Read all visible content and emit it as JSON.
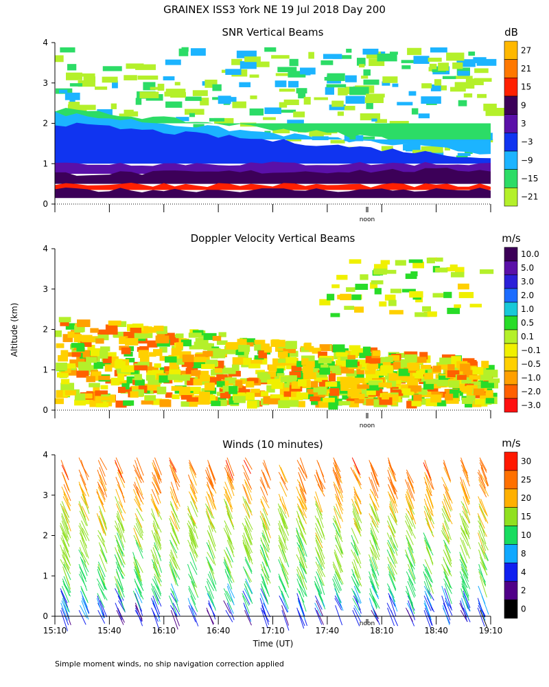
{
  "figure_title": "GRAINEX ISS3 York NE  19 Jul 2018 Day 200",
  "y_axis_label": "Altitude (km)",
  "x_axis_label": "Time (UT)",
  "noon_label": "noon",
  "footnote": "Simple moment winds, no ship navigation correction applied",
  "chart_data": [
    {
      "type": "heatmap",
      "title": "SNR Vertical Beams",
      "xlabel": "",
      "ylabel": "Altitude (km)",
      "x_range": [
        "15:10",
        "19:10"
      ],
      "ylim": [
        0,
        4
      ],
      "y_ticks": [
        0,
        1,
        2,
        3,
        4
      ],
      "colorbar": {
        "unit": "dB",
        "levels": [
          27,
          21,
          15,
          9,
          3,
          -3,
          -9,
          -15,
          -21
        ],
        "labels": [
          "27",
          "21",
          "15",
          "9",
          "3",
          "−3",
          "−9",
          "−15",
          "−21"
        ],
        "colors": [
          "#ffb800",
          "#ff7800",
          "#ff2000",
          "#3c0058",
          "#5a10a8",
          "#1034f0",
          "#1cb4ff",
          "#2cdc66",
          "#b4f02a"
        ]
      },
      "layers": [
        {
          "base": 0.15,
          "top_start": 0.35,
          "top_end": 0.35,
          "level": "9"
        },
        {
          "base": 0.35,
          "top_start": 0.5,
          "top_end": 0.45,
          "level": "15"
        },
        {
          "base": 0.5,
          "top_start": 0.75,
          "top_end": 0.85,
          "level": "9"
        },
        {
          "base": 0.75,
          "top_start": 1.0,
          "top_end": 1.0,
          "level": "3"
        },
        {
          "base": 1.0,
          "top_start": 2.0,
          "top_end": 1.15,
          "level": "-3"
        },
        {
          "base": 1.6,
          "top_start": 2.25,
          "top_end": 1.25,
          "level": "-9"
        },
        {
          "base": 2.0,
          "top_start": 2.35,
          "top_end": 1.4,
          "level": "-15"
        }
      ]
    },
    {
      "type": "heatmap",
      "title": "Doppler Velocity Vertical Beams",
      "xlabel": "",
      "ylabel": "Altitude (km)",
      "x_range": [
        "15:10",
        "19:10"
      ],
      "ylim": [
        0,
        4
      ],
      "y_ticks": [
        0,
        1,
        2,
        3,
        4
      ],
      "colorbar": {
        "unit": "m/s",
        "levels": [
          10.0,
          5.0,
          3.0,
          2.0,
          1.0,
          0.5,
          0.1,
          -0.1,
          -0.5,
          -1.0,
          -2.0,
          -3.0
        ],
        "labels": [
          "10.0",
          "5.0",
          "3.0",
          "2.0",
          "1.0",
          "0.5",
          "0.1",
          "−0.1",
          "−0.5",
          "−1.0",
          "−2.0",
          "−3.0"
        ],
        "colors": [
          "#3c0058",
          "#5a10a8",
          "#2a20d8",
          "#1c6cff",
          "#18c8d8",
          "#28dc28",
          "#b4f02a",
          "#f0f000",
          "#ffd000",
          "#ffa000",
          "#ff6000",
          "#ff1010"
        ]
      }
    },
    {
      "type": "scatter",
      "title": "Winds (10 minutes)",
      "xlabel": "Time (UT)",
      "ylabel": "Altitude (km)",
      "x_ticks": [
        "15:10",
        "15:40",
        "16:10",
        "16:40",
        "17:10",
        "17:40",
        "18:10",
        "18:40",
        "19:10"
      ],
      "ylim": [
        0,
        4
      ],
      "y_ticks": [
        0,
        1,
        2,
        3,
        4
      ],
      "colorbar": {
        "unit": "m/s",
        "levels": [
          30,
          25,
          20,
          15,
          10,
          8,
          4,
          2,
          0
        ],
        "labels": [
          "30",
          "25",
          "20",
          "15",
          "10",
          "8",
          "4",
          "2",
          "0"
        ],
        "colors": [
          "#ff1800",
          "#ff7000",
          "#ffb000",
          "#90e020",
          "#18dc60",
          "#10a8ff",
          "#1020f0",
          "#500088",
          "#000000"
        ]
      },
      "wind_profile_speed_ms": [
        {
          "alt_km": 0.2,
          "speed": 5
        },
        {
          "alt_km": 0.6,
          "speed": 9
        },
        {
          "alt_km": 1.0,
          "speed": 13
        },
        {
          "alt_km": 1.5,
          "speed": 16
        },
        {
          "alt_km": 2.0,
          "speed": 17
        },
        {
          "alt_km": 2.5,
          "speed": 18
        },
        {
          "alt_km": 3.0,
          "speed": 22
        },
        {
          "alt_km": 3.5,
          "speed": 26
        },
        {
          "alt_km": 3.9,
          "speed": 28
        }
      ]
    }
  ]
}
